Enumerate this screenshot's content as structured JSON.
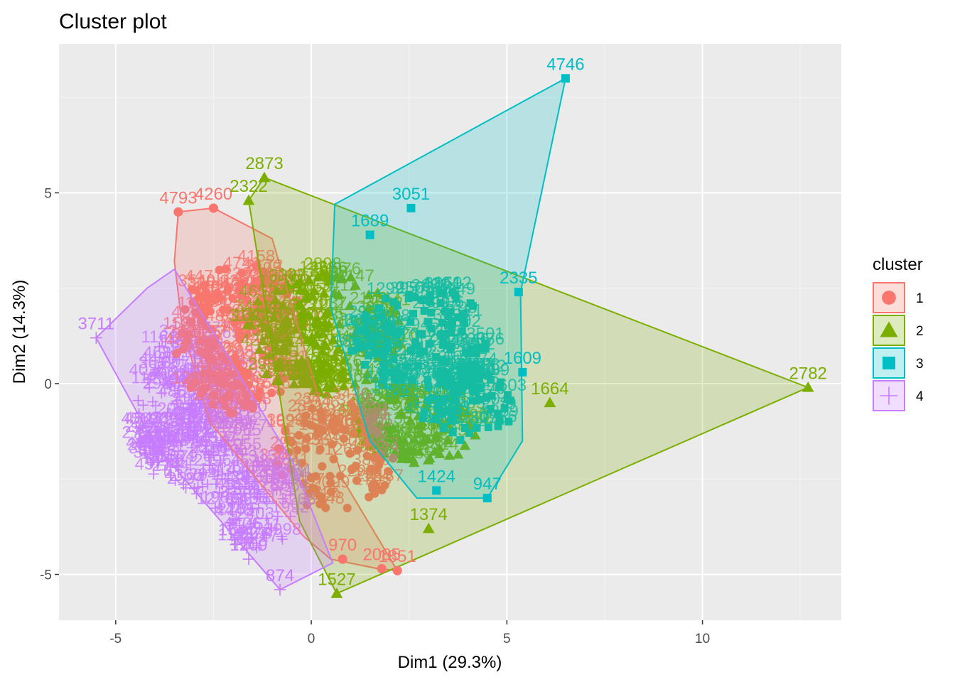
{
  "chart_data": {
    "type": "scatter",
    "title": "Cluster plot",
    "xlabel": "Dim1 (29.3%)",
    "ylabel": "Dim2 (14.3%)",
    "xlim": [
      -6.45,
      13.55
    ],
    "ylim": [
      -6.2,
      8.9
    ],
    "x_ticks": [
      -5,
      0,
      5,
      10
    ],
    "y_ticks": [
      -5,
      0,
      5
    ],
    "x_tick_labels": [
      "-5",
      "0",
      "5",
      "10"
    ],
    "y_tick_labels": [
      "-5",
      "0",
      "5"
    ],
    "grid": true,
    "legend": {
      "title": "cluster",
      "position": "right"
    },
    "series": [
      {
        "name": "1",
        "color": "#F8766D",
        "marker": "circle",
        "hull": [
          [
            -3.4,
            4.5
          ],
          [
            -2.5,
            4.6
          ],
          [
            -1.0,
            3.8
          ],
          [
            0.8,
            -2.5
          ],
          [
            2.2,
            -4.9
          ],
          [
            1.7,
            -4.85
          ],
          [
            0.5,
            -4.6
          ],
          [
            -0.2,
            -4.0
          ],
          [
            -2.6,
            -1.0
          ],
          [
            -3.3,
            1.5
          ],
          [
            -3.5,
            3.2
          ]
        ],
        "labeled_points": [
          {
            "label": "4793",
            "x": -3.4,
            "y": 4.5
          },
          {
            "label": "4260",
            "x": -2.5,
            "y": 4.6
          },
          {
            "label": "2085",
            "x": 1.8,
            "y": -4.85
          },
          {
            "label": "1851",
            "x": 2.2,
            "y": -4.9
          },
          {
            "label": "970",
            "x": 0.8,
            "y": -4.6
          }
        ]
      },
      {
        "name": "2",
        "color": "#7CAE00",
        "marker": "triangle",
        "hull": [
          [
            -1.2,
            5.4
          ],
          [
            12.7,
            -0.1
          ],
          [
            0.65,
            -5.5
          ],
          [
            -0.3,
            -3.6
          ],
          [
            -1.6,
            4.8
          ]
        ],
        "labeled_points": [
          {
            "label": "2873",
            "x": -1.2,
            "y": 5.4
          },
          {
            "label": "2322",
            "x": -1.6,
            "y": 4.8
          },
          {
            "label": "2782",
            "x": 12.7,
            "y": -0.1
          },
          {
            "label": "1664",
            "x": 6.1,
            "y": -0.5
          },
          {
            "label": "1527",
            "x": 0.65,
            "y": -5.5
          },
          {
            "label": "1374",
            "x": 3.0,
            "y": -3.8
          }
        ]
      },
      {
        "name": "3",
        "color": "#00BFC4",
        "marker": "square",
        "hull": [
          [
            6.5,
            8.0
          ],
          [
            5.35,
            2.4
          ],
          [
            5.4,
            -1.5
          ],
          [
            4.5,
            -3.0
          ],
          [
            2.7,
            -3.0
          ],
          [
            1.5,
            -1.5
          ],
          [
            0.5,
            2.0
          ],
          [
            0.6,
            4.7
          ]
        ],
        "labeled_points": [
          {
            "label": "4746",
            "x": 6.5,
            "y": 8.0
          },
          {
            "label": "3051",
            "x": 2.55,
            "y": 4.6
          },
          {
            "label": "1689",
            "x": 1.5,
            "y": 3.9
          },
          {
            "label": "2335",
            "x": 5.3,
            "y": 2.4
          },
          {
            "label": "1609",
            "x": 5.4,
            "y": 0.3
          },
          {
            "label": "947",
            "x": 4.5,
            "y": -3.0
          },
          {
            "label": "1424",
            "x": 3.2,
            "y": -2.8
          }
        ]
      },
      {
        "name": "4",
        "color": "#C77CFF",
        "marker": "plus",
        "hull": [
          [
            -5.5,
            1.2
          ],
          [
            -4.2,
            2.5
          ],
          [
            -3.5,
            3.0
          ],
          [
            -0.5,
            -2.0
          ],
          [
            0.55,
            -4.7
          ],
          [
            -0.8,
            -5.4
          ],
          [
            -4.0,
            -1.6
          ]
        ],
        "labeled_points": [
          {
            "label": "3711",
            "x": -5.5,
            "y": 1.2
          },
          {
            "label": "874",
            "x": -0.8,
            "y": -5.4
          },
          {
            "label": "1209",
            "x": -1.6,
            "y": -4.6
          },
          {
            "label": "1547",
            "x": -1.9,
            "y": -4.2
          }
        ]
      }
    ]
  }
}
